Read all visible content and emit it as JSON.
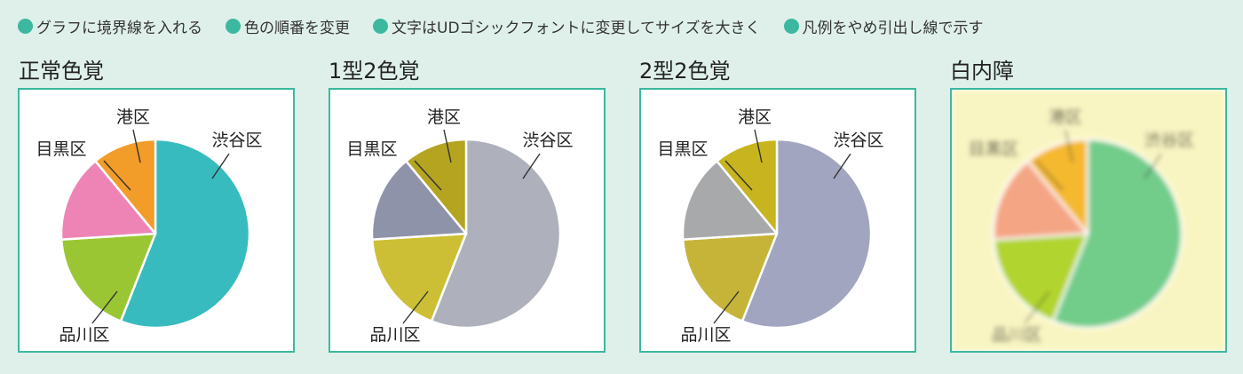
{
  "tips": [
    "グラフに境界線を入れる",
    "色の順番を変更",
    "文字はUDゴシックフォントに変更してサイズを大きく",
    "凡例をやめ引出し線で示す"
  ],
  "chart_data": [
    {
      "type": "pie",
      "title": "正常色覚",
      "categories": [
        "渋谷区",
        "品川区",
        "目黒区",
        "港区"
      ],
      "values": [
        56,
        18,
        15,
        11
      ],
      "colors": [
        "#38bbbf",
        "#9bc634",
        "#ee84b5",
        "#f29c29"
      ]
    },
    {
      "type": "pie",
      "title": "1型2色覚",
      "categories": [
        "渋谷区",
        "品川区",
        "目黒区",
        "港区"
      ],
      "values": [
        56,
        18,
        15,
        11
      ],
      "colors": [
        "#aeb0bb",
        "#cdbf35",
        "#8f93a9",
        "#b4a420"
      ]
    },
    {
      "type": "pie",
      "title": "2型2色覚",
      "categories": [
        "渋谷区",
        "品川区",
        "目黒区",
        "港区"
      ],
      "values": [
        56,
        18,
        15,
        11
      ],
      "colors": [
        "#a1a5bf",
        "#c6b439",
        "#a8a9ab",
        "#c8b41e"
      ]
    },
    {
      "type": "pie",
      "title": "白内障",
      "categories": [
        "渋谷区",
        "品川区",
        "目黒区",
        "港区"
      ],
      "values": [
        56,
        18,
        15,
        11
      ],
      "colors": [
        "#72cc8a",
        "#b2d42f",
        "#f4a584",
        "#f4b92e"
      ],
      "background": "#f9f5c2",
      "blurred": true
    }
  ]
}
